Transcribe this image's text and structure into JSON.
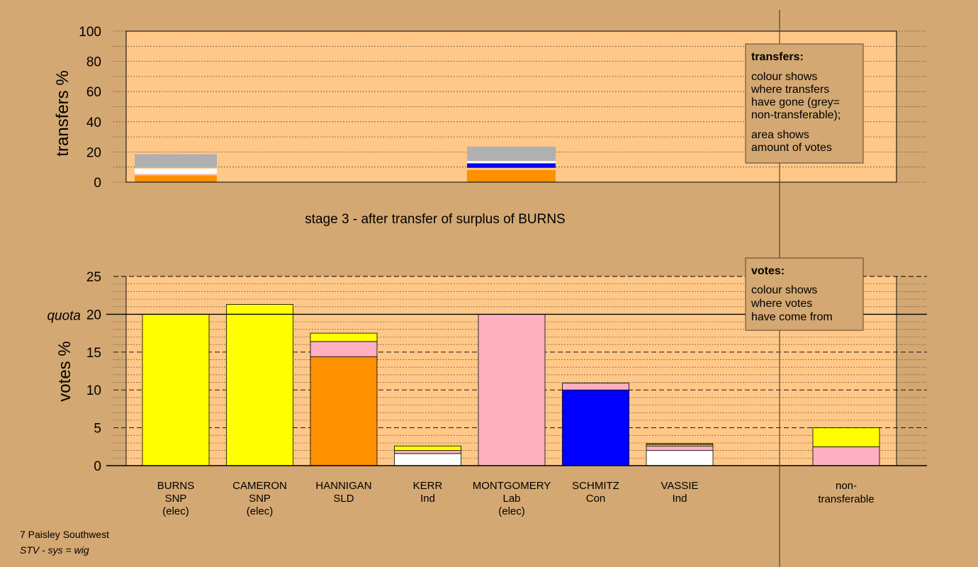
{
  "chart_data": [
    {
      "type": "bar",
      "stacked": true,
      "name": "transfers",
      "ylabel": "transfers %",
      "ylim": [
        0,
        100
      ],
      "yticks": [
        0,
        20,
        40,
        60,
        80,
        100
      ],
      "grid": true,
      "legend": {
        "placement": "top-right",
        "title": "transfers:",
        "lines": [
          "colour shows",
          "where transfers",
          "have gone (grey=",
          "non-transferable);",
          "",
          "area shows",
          "amount of votes"
        ]
      },
      "categories": [
        "BURNS",
        "CAMERON",
        "HANNIGAN",
        "KERR",
        "MONTGOMERY",
        "SCHMITZ",
        "VASSIE",
        "non-transferable"
      ],
      "bars": [
        {
          "category": "BURNS",
          "segments": [
            {
              "color": "#ff9000",
              "value": 4.5
            },
            {
              "color": "#ffb0c0",
              "value": 0.5
            },
            {
              "color": "#ffc888",
              "value": 0.5
            },
            {
              "color": "#ffffff",
              "value": 3.5
            },
            {
              "color": "#ffc888",
              "value": 0.5
            },
            {
              "color": "#b0b0b0",
              "value": 9
            }
          ]
        },
        {
          "category": "MONTGOMERY",
          "segments": [
            {
              "color": "#ff9000",
              "value": 8
            },
            {
              "color": "#ffc888",
              "value": 1.5
            },
            {
              "color": "#0000ff",
              "value": 3
            },
            {
              "color": "#ffffff",
              "value": 1.5
            },
            {
              "color": "#b0b0b0",
              "value": 9.5
            }
          ]
        }
      ]
    },
    {
      "type": "bar",
      "stacked": true,
      "name": "votes",
      "title": "stage 3 - after transfer of surplus of BURNS",
      "ylabel": "votes %",
      "ylim": [
        0,
        25
      ],
      "yticks": [
        0,
        5,
        10,
        15,
        20,
        25
      ],
      "quota": 20,
      "quota_label": "quota",
      "grid": true,
      "legend": {
        "placement": "top-right",
        "title": "votes:",
        "lines": [
          "colour shows",
          "where votes",
          "have come from"
        ]
      },
      "candidates": [
        {
          "name": "BURNS",
          "party": "SNP",
          "status": "(elec)",
          "segments": [
            {
              "color": "#ffff00",
              "value": 20
            }
          ]
        },
        {
          "name": "CAMERON",
          "party": "SNP",
          "status": "(elec)",
          "segments": [
            {
              "color": "#ffff00",
              "value": 21.3
            }
          ]
        },
        {
          "name": "HANNIGAN",
          "party": "SLD",
          "status": "",
          "segments": [
            {
              "color": "#ff9000",
              "value": 14.4
            },
            {
              "color": "#ffb0c0",
              "value": 2.0
            },
            {
              "color": "#ffff00",
              "value": 1.1
            }
          ]
        },
        {
          "name": "KERR",
          "party": "Ind",
          "status": "",
          "segments": [
            {
              "color": "#ffffff",
              "value": 1.6
            },
            {
              "color": "#ffb0c0",
              "value": 0.4
            },
            {
              "color": "#ffff00",
              "value": 0.6
            }
          ]
        },
        {
          "name": "MONTGOMERY",
          "party": "Lab",
          "status": "(elec)",
          "segments": [
            {
              "color": "#ffb0c0",
              "value": 20
            }
          ]
        },
        {
          "name": "SCHMITZ",
          "party": "Con",
          "status": "",
          "segments": [
            {
              "color": "#0000ff",
              "value": 10.0
            },
            {
              "color": "#ffb0c0",
              "value": 0.9
            }
          ]
        },
        {
          "name": "VASSIE",
          "party": "Ind",
          "status": "",
          "segments": [
            {
              "color": "#ffffff",
              "value": 2.0
            },
            {
              "color": "#ffb0c0",
              "value": 0.6
            },
            {
              "color": "#ffff00",
              "value": 0.2
            },
            {
              "color": "#ff9000",
              "value": 0.1
            }
          ]
        }
      ],
      "nontransferable": {
        "label_lines": [
          "non-",
          "transferable"
        ],
        "segments": [
          {
            "color": "#ffb0c0",
            "value": 2.5
          },
          {
            "color": "#ffff00",
            "value": 2.5
          }
        ]
      }
    }
  ],
  "footer": {
    "line1": "7 Paisley Southwest",
    "line2": "STV - sys = wig"
  },
  "colors": {
    "background": "#d4a872",
    "plot_area": "#ffc888"
  }
}
